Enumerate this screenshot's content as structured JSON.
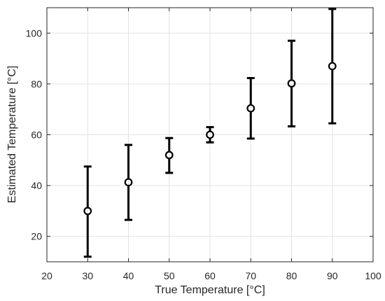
{
  "chart_data": {
    "type": "scatter",
    "xlabel": "True Temperature [°C]",
    "ylabel": "Estimated Temperature [°C]",
    "xlim": [
      20,
      100
    ],
    "ylim": [
      10,
      110
    ],
    "xticks": [
      "20",
      "30",
      "40",
      "50",
      "60",
      "70",
      "80",
      "90",
      "100"
    ],
    "yticks": [
      "20",
      "40",
      "60",
      "80",
      "100"
    ],
    "xtick_values": [
      20,
      30,
      40,
      50,
      60,
      70,
      80,
      90,
      100
    ],
    "ytick_values": [
      20,
      40,
      60,
      80,
      100
    ],
    "grid": true,
    "marker": "circle",
    "error_bars": true,
    "points": [
      {
        "x": 30,
        "y": 30,
        "lower": 12,
        "upper": 47.5
      },
      {
        "x": 40,
        "y": 41.3,
        "lower": 26.5,
        "upper": 56
      },
      {
        "x": 50,
        "y": 52,
        "lower": 45,
        "upper": 58.7
      },
      {
        "x": 60,
        "y": 60,
        "lower": 57,
        "upper": 63
      },
      {
        "x": 70,
        "y": 70.4,
        "lower": 58.5,
        "upper": 82.3
      },
      {
        "x": 80,
        "y": 80.2,
        "lower": 63.3,
        "upper": 97
      },
      {
        "x": 90,
        "y": 87,
        "lower": 64.5,
        "upper": 109.5
      }
    ],
    "colors": {
      "series": "#000000",
      "grid": "#e3e3e3",
      "axes": "#262626"
    }
  }
}
